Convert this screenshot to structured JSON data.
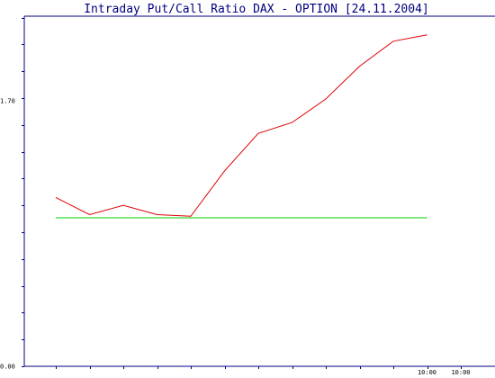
{
  "chart_data": {
    "type": "line",
    "title": "Intraday Put/Call Ratio DAX - OPTION [24.11.2004]",
    "xlabel": "",
    "ylabel": "",
    "ylim": [
      0,
      2.24
    ],
    "y_tick_labels": [
      "1.70",
      "0.00"
    ],
    "y_tick_values": [
      1.7,
      0.0
    ],
    "x_tick_labels": [
      "10:00",
      "10:00"
    ],
    "x_tick_label_slots": [
      11,
      12
    ],
    "x_slots": 13,
    "grid": false,
    "series": [
      {
        "color": "#dd0000",
        "values": [
          1.08,
          0.97,
          1.03,
          0.97,
          0.96,
          1.25,
          1.49,
          1.56,
          1.71,
          1.92,
          2.08,
          2.12
        ]
      },
      {
        "color": "#00cc00",
        "values": [
          0.95,
          0.95,
          0.95,
          0.95,
          0.95,
          0.95,
          0.95,
          0.95,
          0.95,
          0.95,
          0.95,
          0.95
        ]
      }
    ]
  },
  "colors": {
    "title": "#000080",
    "axis": "#000080",
    "background": "#ffffff"
  }
}
